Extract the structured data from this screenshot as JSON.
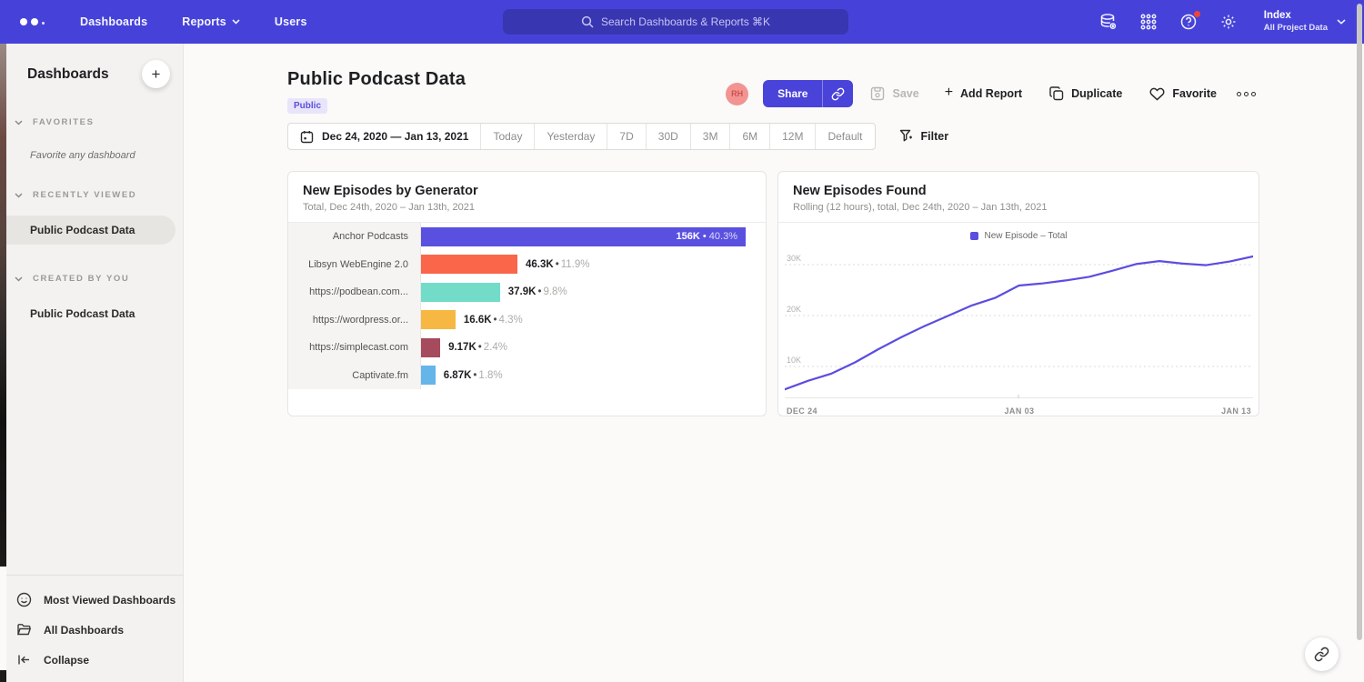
{
  "nav": {
    "menu": [
      "Dashboards",
      "Reports",
      "Users"
    ],
    "search_placeholder": "Search Dashboards & Reports ⌘K",
    "account": {
      "name": "Index",
      "scope": "All Project Data"
    }
  },
  "sidebar": {
    "title": "Dashboards",
    "add_label": "+",
    "sections": [
      {
        "header": "FAVORITES",
        "empty": "Favorite any dashboard"
      },
      {
        "header": "RECENTLY VIEWED",
        "items": [
          {
            "label": "Public Podcast Data"
          }
        ]
      },
      {
        "header": "CREATED BY YOU",
        "items": [
          {
            "label": "Public Podcast Data"
          }
        ]
      }
    ],
    "footer": [
      {
        "label": "Most Viewed Dashboards"
      },
      {
        "label": "All Dashboards"
      },
      {
        "label": "Collapse"
      }
    ]
  },
  "header": {
    "title": "Public Podcast Data",
    "badge": "Public",
    "actions": {
      "avatar": "RH",
      "share": "Share",
      "save": "Save",
      "add_report": "Add Report",
      "add_report_plus": "+",
      "duplicate": "Duplicate",
      "favorite": "Favorite"
    }
  },
  "toolbar": {
    "date_range": "Dec 24, 2020 — Jan 13, 2021",
    "presets": [
      "Today",
      "Yesterday",
      "7D",
      "30D",
      "3M",
      "6M",
      "12M",
      "Default"
    ],
    "filter": "Filter"
  },
  "separator": "•",
  "colors": {
    "accent": "#4a43d9",
    "line": "#5b4de0"
  },
  "bar_chart": {
    "title": "New Episodes by Generator",
    "subtitle": "Total, Dec 24th, 2020 – Jan 13th, 2021",
    "rows": [
      {
        "label": "Anchor Podcasts",
        "value": "156K",
        "pct": "40.3%",
        "color": "#5a50e0",
        "width": "100%"
      },
      {
        "label": "Libsyn WebEngine 2.0",
        "value": "46.3K",
        "pct": "11.9%",
        "color": "#f9664a",
        "width": "29.7%"
      },
      {
        "label": "https://podbean.com...",
        "value": "37.9K",
        "pct": "9.8%",
        "color": "#72dcc8",
        "width": "24.3%"
      },
      {
        "label": "https://wordpress.or...",
        "value": "16.6K",
        "pct": "4.3%",
        "color": "#f6b843",
        "width": "10.6%"
      },
      {
        "label": "https://simplecast.com",
        "value": "9.17K",
        "pct": "2.4%",
        "color": "#a64a5e",
        "width": "5.9%"
      },
      {
        "label": "Captivate.fm",
        "value": "6.87K",
        "pct": "1.8%",
        "color": "#64b5ea",
        "width": "4.4%"
      }
    ]
  },
  "line_chart": {
    "title": "New Episodes Found",
    "subtitle": "Rolling (12 hours), total, Dec 24th, 2020 – Jan 13th, 2021",
    "legend": "New Episode – Total",
    "y_ticks": [
      "30K",
      "20K",
      "10K"
    ],
    "x_ticks": [
      "DEC 24",
      "JAN 03",
      "JAN 13"
    ]
  },
  "chart_data": [
    {
      "type": "bar",
      "orientation": "horizontal",
      "title": "New Episodes by Generator",
      "subtitle": "Total, Dec 24th, 2020 – Jan 13th, 2021",
      "categories": [
        "Anchor Podcasts",
        "Libsyn WebEngine 2.0",
        "https://podbean.com...",
        "https://wordpress.or...",
        "https://simplecast.com",
        "Captivate.fm"
      ],
      "values": [
        156000,
        46300,
        37900,
        16600,
        9170,
        6870
      ],
      "value_labels": [
        "156K",
        "46.3K",
        "37.9K",
        "16.6K",
        "9.17K",
        "6.87K"
      ],
      "percentages": [
        40.3,
        11.9,
        9.8,
        4.3,
        2.4,
        1.8
      ],
      "colors": [
        "#5a50e0",
        "#f9664a",
        "#72dcc8",
        "#f6b843",
        "#a64a5e",
        "#64b5ea"
      ],
      "xlabel": "",
      "ylabel": ""
    },
    {
      "type": "line",
      "title": "New Episodes Found",
      "subtitle": "Rolling (12 hours), total, Dec 24th, 2020 – Jan 13th, 2021",
      "legend": [
        "New Episode – Total"
      ],
      "legend_position": "top-center",
      "grid": "dashed-horizontal",
      "unit": "thousands",
      "ylim": [
        3.75,
        33.5
      ],
      "y_ticks": [
        10,
        20,
        30
      ],
      "x_tick_labels": [
        "DEC 24",
        "JAN 03",
        "JAN 13"
      ],
      "x": [
        "Dec 24",
        "Dec 25",
        "Dec 26",
        "Dec 27",
        "Dec 28",
        "Dec 29",
        "Dec 30",
        "Dec 31",
        "Jan 01",
        "Jan 02",
        "Jan 03",
        "Jan 04",
        "Jan 05",
        "Jan 06",
        "Jan 07",
        "Jan 08",
        "Jan 09",
        "Jan 10",
        "Jan 11",
        "Jan 12",
        "Jan 13"
      ],
      "series": [
        {
          "name": "New Episode – Total",
          "values": [
            5.5,
            7.2,
            8.6,
            10.8,
            13.4,
            15.8,
            18.0,
            20.0,
            22.0,
            23.5,
            25.9,
            26.3,
            26.9,
            27.6,
            28.8,
            30.1,
            30.7,
            30.2,
            29.9,
            30.6,
            31.6
          ]
        }
      ]
    }
  ]
}
